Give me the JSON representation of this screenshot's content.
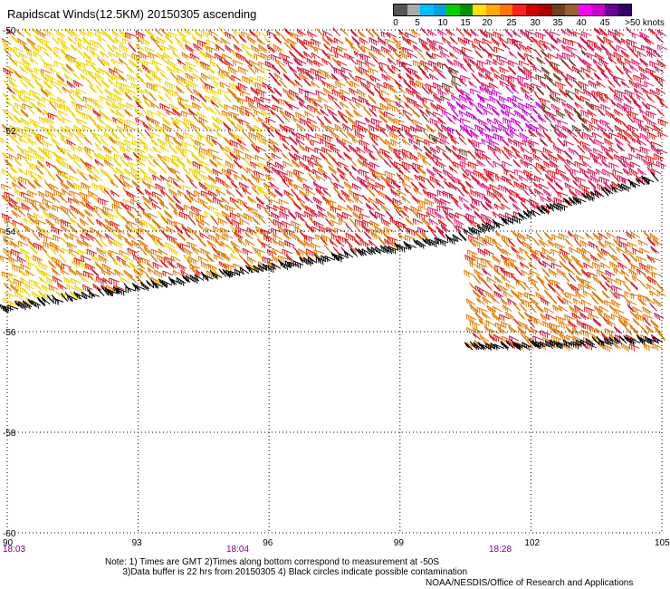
{
  "header": {
    "title": "Rapidscat Winds(12.5KM) 20150305 ascending"
  },
  "legend": {
    "labels": [
      "0",
      "5",
      "10",
      "15",
      "20",
      "25",
      "30",
      "35",
      "40",
      "45",
      ">50 knots"
    ],
    "colors": [
      "#555555",
      "#aaaaaa",
      "#00bfff",
      "#00a0e0",
      "#00d000",
      "#009000",
      "#ffe000",
      "#ffaa00",
      "#ff7700",
      "#ff2020",
      "#cc0000",
      "#aa0000",
      "#704020",
      "#9a6030",
      "#ff00ff",
      "#cc00cc",
      "#660099",
      "#330066"
    ]
  },
  "map": {
    "lat_labels": [
      "-50",
      "-52",
      "-54",
      "-56",
      "-58",
      "-60"
    ],
    "lon_labels": [
      "90",
      "93",
      "96",
      "99",
      "102",
      "105"
    ],
    "time_labels": [
      "18:03",
      "18:04",
      "18:28"
    ],
    "wind_colors": {
      "yellow": "#f0d000",
      "orange": "#e07a00",
      "red": "#dd1a1a",
      "crimson": "#c8104a",
      "pink": "#e0207a",
      "brown": "#6a3a1a",
      "magenta": "#cc00cc",
      "black": "#000000"
    }
  },
  "footer": {
    "note_line1": "Note: 1) Times are GMT 2)Times along bottom correspond to measurement at -50S",
    "note_line2": "       3)Data buffer is 22 hrs from 20150305 4) Black circles indicate possible contamination",
    "credit": "NOAA/NESDIS/Office of Research and Applications"
  }
}
